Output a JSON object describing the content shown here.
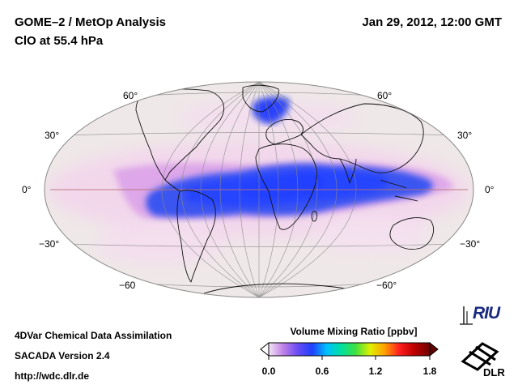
{
  "header": {
    "title_line1": "GOME–2 / MetOp Analysis",
    "title_line2": "ClO at 55.4 hPa",
    "datetime": "Jan 29, 2012, 12:00 GMT"
  },
  "map": {
    "projection": "Hammer-Aitoff",
    "lat_labels_left": [
      "60°",
      "30°",
      "0°",
      "−30°",
      "−60"
    ],
    "lat_labels_right": [
      "60°",
      "30°",
      "0°",
      "−30°",
      "−60°"
    ],
    "ocean_color": "#efe8e8",
    "field": "ClO volume mixing ratio",
    "regions": [
      {
        "name": "tropical band",
        "value_ppbv": 0.5
      },
      {
        "name": "north atlantic high latitude",
        "value_ppbv": 0.55
      },
      {
        "name": "background",
        "value_ppbv": 0.05
      }
    ]
  },
  "colorbar": {
    "title": "Volume Mixing Ratio [ppbv]",
    "ticks": [
      "0.0",
      "0.6",
      "1.2",
      "1.8"
    ],
    "range": [
      0.0,
      1.8
    ],
    "colors": [
      "#f4e6f4",
      "#c080e8",
      "#6a4cf4",
      "#2040ff",
      "#00c0ff",
      "#00e0a0",
      "#40e040",
      "#e0f000",
      "#ffa000",
      "#ff2020",
      "#c00000",
      "#700000"
    ]
  },
  "footer": {
    "line1": "4DVar Chemical Data Assimilation",
    "line2": "SACADA Version 2.4",
    "line3": "http://wdc.dlr.de"
  },
  "logos": {
    "riu": "RIU",
    "dlr": "DLR"
  }
}
